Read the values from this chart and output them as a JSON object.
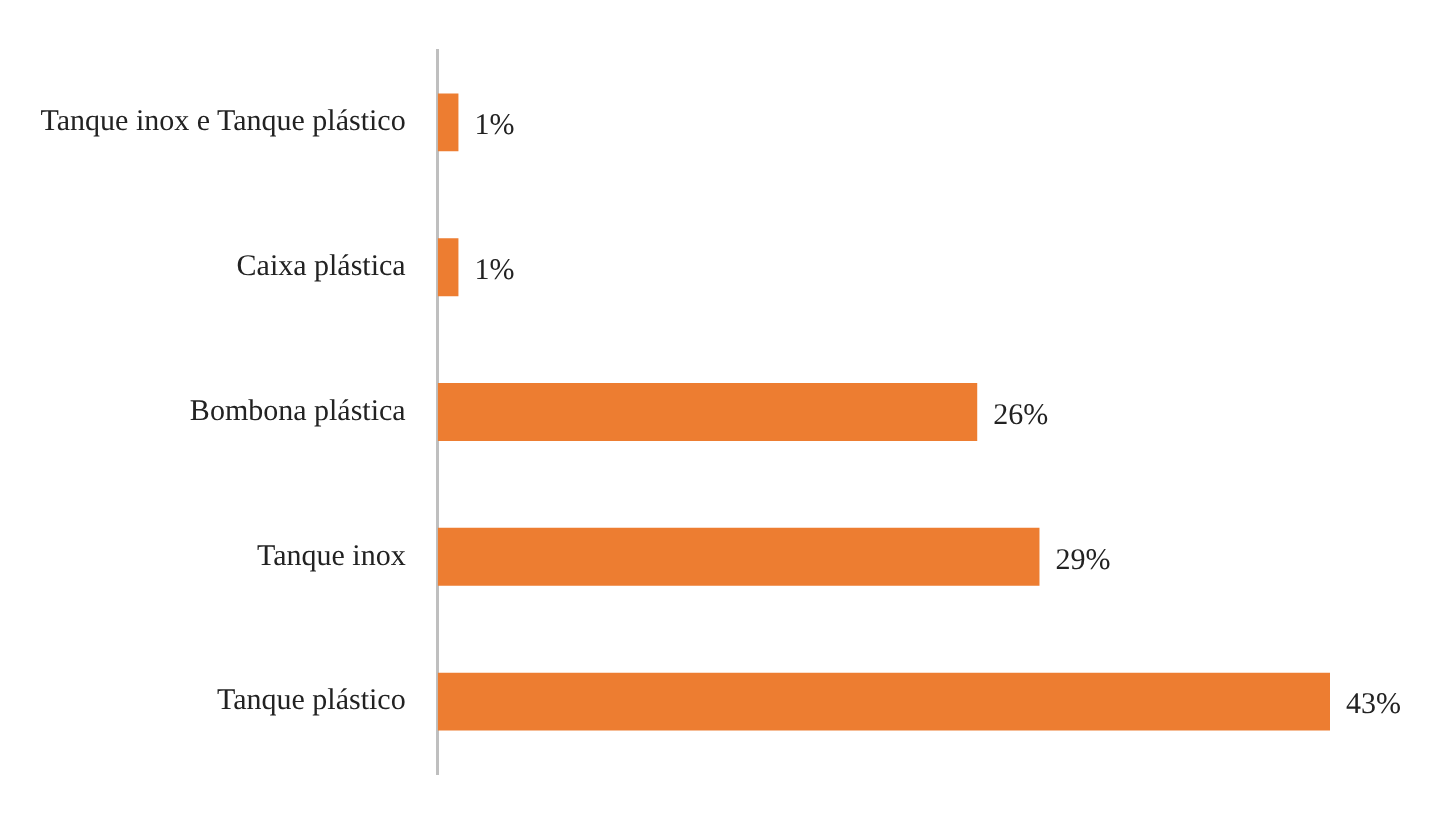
{
  "chart_data": {
    "type": "bar",
    "orientation": "horizontal",
    "categories": [
      "Tanque inox e Tanque plástico",
      "Caixa plástica",
      "Bombona plástica",
      "Tanque inox",
      "Tanque plástico"
    ],
    "values": [
      1,
      1,
      26,
      29,
      43
    ],
    "value_labels": [
      "1%",
      "1%",
      "26%",
      "29%",
      "43%"
    ],
    "color": "#ed7d31"
  }
}
